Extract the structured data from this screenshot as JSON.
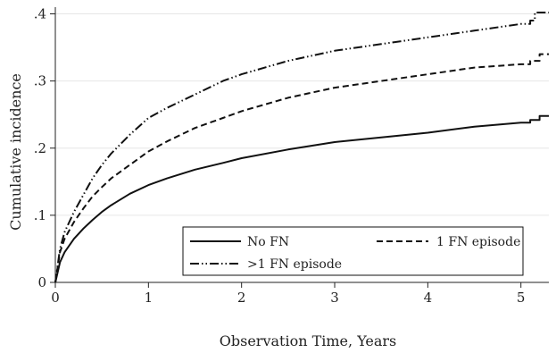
{
  "chart_data": {
    "type": "line",
    "title": "",
    "xlabel": "Observation Time, Years",
    "ylabel": "Cumulative incidence",
    "xlim": [
      0,
      5.3
    ],
    "ylim": [
      0,
      0.41
    ],
    "grid": "horizontal",
    "legend_placement": "bottom-right",
    "x_ticks": [
      {
        "value": 0,
        "label": "0"
      },
      {
        "value": 1,
        "label": "1"
      },
      {
        "value": 2,
        "label": "2"
      },
      {
        "value": 3,
        "label": "3"
      },
      {
        "value": 4,
        "label": "4"
      },
      {
        "value": 5,
        "label": "5"
      }
    ],
    "y_ticks": [
      {
        "value": 0,
        "label": "0"
      },
      {
        "value": 0.1,
        "label": ".1"
      },
      {
        "value": 0.2,
        "label": ".2"
      },
      {
        "value": 0.3,
        "label": ".3"
      },
      {
        "value": 0.4,
        "label": ".4"
      }
    ],
    "series": [
      {
        "name": "No FN",
        "style": "solid",
        "color": "#111111",
        "x": [
          0,
          0.05,
          0.1,
          0.2,
          0.3,
          0.4,
          0.5,
          0.6,
          0.8,
          1.0,
          1.2,
          1.5,
          1.8,
          2.0,
          2.5,
          3.0,
          3.5,
          4.0,
          4.5,
          5.0,
          5.1,
          5.1,
          5.2,
          5.2,
          5.3
        ],
        "y": [
          0,
          0.03,
          0.045,
          0.065,
          0.08,
          0.093,
          0.105,
          0.115,
          0.132,
          0.145,
          0.155,
          0.168,
          0.178,
          0.185,
          0.198,
          0.209,
          0.216,
          0.223,
          0.232,
          0.238,
          0.238,
          0.242,
          0.242,
          0.248,
          0.248
        ]
      },
      {
        "name": "1 FN episode",
        "style": "dashed",
        "color": "#111111",
        "x": [
          0,
          0.05,
          0.1,
          0.2,
          0.3,
          0.4,
          0.5,
          0.6,
          0.8,
          1.0,
          1.2,
          1.5,
          1.8,
          2.0,
          2.5,
          3.0,
          3.5,
          4.0,
          4.5,
          5.0,
          5.1,
          5.1,
          5.2,
          5.2,
          5.3
        ],
        "y": [
          0,
          0.045,
          0.065,
          0.09,
          0.11,
          0.128,
          0.142,
          0.155,
          0.175,
          0.195,
          0.21,
          0.23,
          0.245,
          0.255,
          0.275,
          0.29,
          0.3,
          0.31,
          0.32,
          0.325,
          0.325,
          0.33,
          0.33,
          0.34,
          0.34
        ]
      },
      {
        "name": ">1 FN episode",
        "style": "dash-dot-dot",
        "color": "#111111",
        "x": [
          0,
          0.05,
          0.1,
          0.2,
          0.3,
          0.4,
          0.5,
          0.6,
          0.8,
          1.0,
          1.2,
          1.5,
          1.8,
          2.0,
          2.5,
          3.0,
          3.5,
          4.0,
          4.5,
          5.0,
          5.1,
          5.1,
          5.15,
          5.15,
          5.3
        ],
        "y": [
          0,
          0.05,
          0.075,
          0.105,
          0.13,
          0.155,
          0.175,
          0.192,
          0.22,
          0.245,
          0.26,
          0.28,
          0.3,
          0.31,
          0.33,
          0.345,
          0.355,
          0.365,
          0.375,
          0.385,
          0.385,
          0.39,
          0.39,
          0.402,
          0.402
        ]
      }
    ],
    "legend": [
      {
        "label": "No FN",
        "series": 0
      },
      {
        "label": "1 FN episode",
        "series": 1
      },
      {
        "label": ">1 FN episode",
        "series": 2
      }
    ]
  }
}
